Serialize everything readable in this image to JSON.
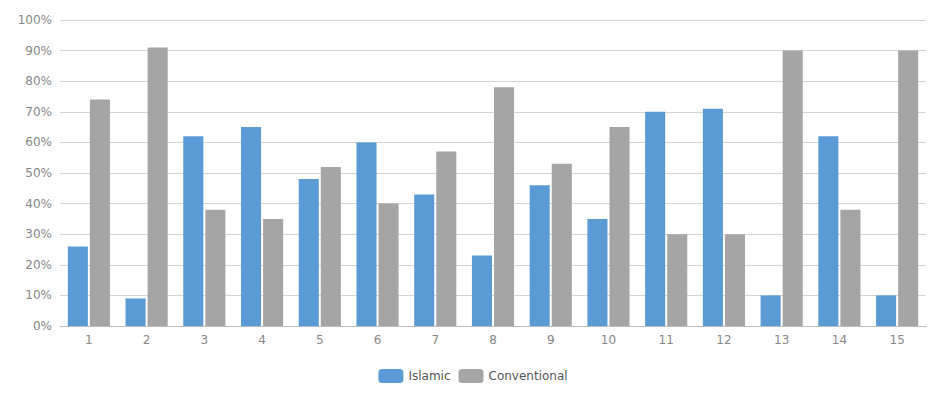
{
  "chart_data": {
    "type": "bar",
    "categories": [
      1,
      2,
      3,
      4,
      5,
      6,
      7,
      8,
      9,
      10,
      11,
      12,
      13,
      14,
      15
    ],
    "series": [
      {
        "name": "Islamic",
        "color": "#5B9BD5",
        "values": [
          0.26,
          0.09,
          0.62,
          0.65,
          0.48,
          0.6,
          0.43,
          0.23,
          0.46,
          0.35,
          0.7,
          0.71,
          0.1,
          0.62,
          0.1
        ]
      },
      {
        "name": "Conventional",
        "color": "#A5A5A5",
        "values": [
          0.74,
          0.91,
          0.38,
          0.35,
          0.52,
          0.4,
          0.57,
          0.78,
          0.53,
          0.65,
          0.3,
          0.3,
          0.9,
          0.38,
          0.9
        ]
      }
    ],
    "ylim": [
      0,
      1.0
    ],
    "yticks": [
      {
        "value": 0.0,
        "label": "0%"
      },
      {
        "value": 0.1,
        "label": "10%"
      },
      {
        "value": 0.2,
        "label": "20%"
      },
      {
        "value": 0.3,
        "label": "30%"
      },
      {
        "value": 0.4,
        "label": "40%"
      },
      {
        "value": 0.5,
        "label": "50%"
      },
      {
        "value": 0.6,
        "label": "60%"
      },
      {
        "value": 0.7,
        "label": "70%"
      },
      {
        "value": 0.8,
        "label": "80%"
      },
      {
        "value": 0.9,
        "label": "90%"
      },
      {
        "value": 1.0,
        "label": "100%"
      }
    ],
    "grid": true,
    "legend": "bottom"
  }
}
